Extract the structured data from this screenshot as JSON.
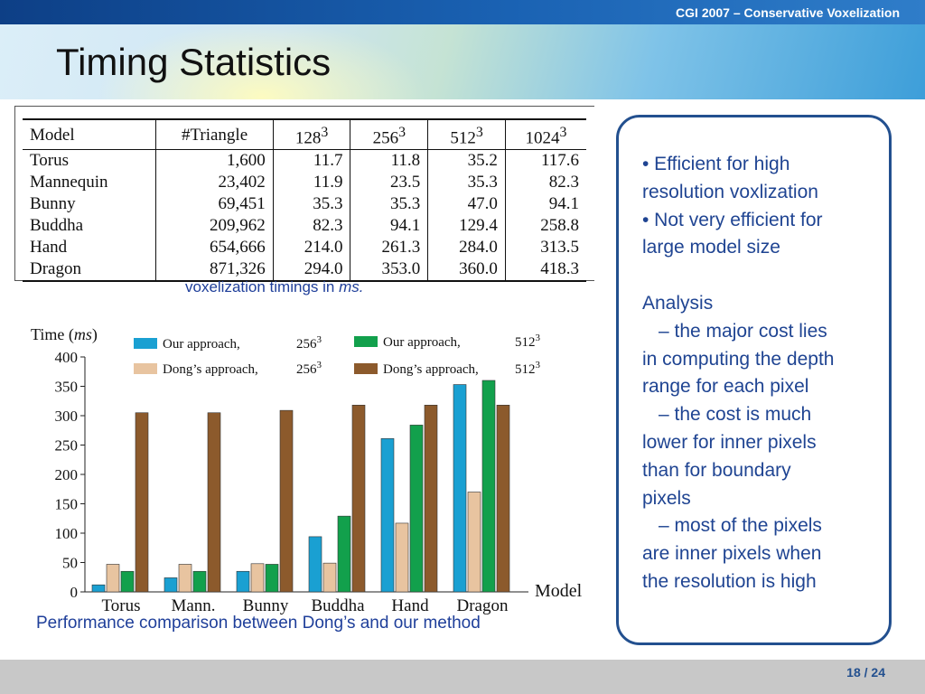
{
  "header": {
    "conference": "CGI 2007 – Conservative Voxelization",
    "title": "Timing Statistics"
  },
  "table": {
    "columns": [
      {
        "label": "Model",
        "sup": ""
      },
      {
        "label": "#Triangle",
        "sup": ""
      },
      {
        "label": "128",
        "sup": "3"
      },
      {
        "label": "256",
        "sup": "3"
      },
      {
        "label": "512",
        "sup": "3"
      },
      {
        "label": "1024",
        "sup": "3"
      }
    ],
    "rows": [
      [
        "Torus",
        "1,600",
        "11.7",
        "11.8",
        "35.2",
        "117.6"
      ],
      [
        "Mannequin",
        "23,402",
        "11.9",
        "23.5",
        "35.3",
        "82.3"
      ],
      [
        "Bunny",
        "69,451",
        "35.3",
        "35.3",
        "47.0",
        "94.1"
      ],
      [
        "Buddha",
        "209,962",
        "82.3",
        "94.1",
        "129.4",
        "258.8"
      ],
      [
        "Hand",
        "654,666",
        "214.0",
        "261.3",
        "284.0",
        "313.5"
      ],
      [
        "Dragon",
        "871,326",
        "294.0",
        "353.0",
        "360.0",
        "418.3"
      ]
    ],
    "caption_prefix": "voxelization timings in ",
    "caption_unit": "ms."
  },
  "chart_data": {
    "type": "bar",
    "title": "",
    "ylabel_prefix": "Time (",
    "ylabel_unit": "ms",
    "ylabel_suffix": ")",
    "xlabel": "Model",
    "ylim": [
      0,
      400
    ],
    "yticks": [
      0,
      50,
      100,
      150,
      200,
      250,
      300,
      350,
      400
    ],
    "categories": [
      "Torus",
      "Mann.",
      "Bunny",
      "Buddha",
      "Hand",
      "Dragon"
    ],
    "legend_position": "top",
    "series": [
      {
        "name": "Our approach,",
        "res": "256",
        "sup": "3",
        "color": "#1aa0d2",
        "values": [
          12,
          24,
          35,
          94,
          261,
          353
        ]
      },
      {
        "name": "Dong’s approach,",
        "res": "256",
        "sup": "3",
        "color": "#e8c4a0",
        "values": [
          47,
          47,
          48,
          49,
          117,
          170
        ]
      },
      {
        "name": "Our approach,",
        "res": "512",
        "sup": "3",
        "color": "#12a04c",
        "values": [
          35,
          35,
          47,
          129,
          284,
          360
        ]
      },
      {
        "name": "Dong’s approach,",
        "res": "512",
        "sup": "3",
        "color": "#8c5a2c",
        "values": [
          305,
          305,
          309,
          318,
          318,
          318
        ]
      }
    ]
  },
  "chart_caption": "Performance comparison between Dong’s and our method",
  "panel": {
    "lines": [
      {
        "text": "• Efficient  for high",
        "indent": false
      },
      {
        "text": "resolution voxlization",
        "indent": false
      },
      {
        "text": "• Not very efficient for",
        "indent": false
      },
      {
        "text": "large model size",
        "indent": false
      },
      {
        "text": "",
        "indent": false
      },
      {
        "text": "Analysis",
        "indent": false
      },
      {
        "text": "– the major cost lies",
        "indent": true
      },
      {
        "text": "in computing the depth",
        "indent": false
      },
      {
        "text": "range for each pixel",
        "indent": false
      },
      {
        "text": "– the cost is much",
        "indent": true
      },
      {
        "text": "lower for inner pixels",
        "indent": false
      },
      {
        "text": "than for boundary",
        "indent": false
      },
      {
        "text": "pixels",
        "indent": false
      },
      {
        "text": "– most of the pixels",
        "indent": true
      },
      {
        "text": "are inner pixels when",
        "indent": false
      },
      {
        "text": "the resolution is high",
        "indent": false
      }
    ]
  },
  "footer": {
    "page": "18 / 24"
  }
}
